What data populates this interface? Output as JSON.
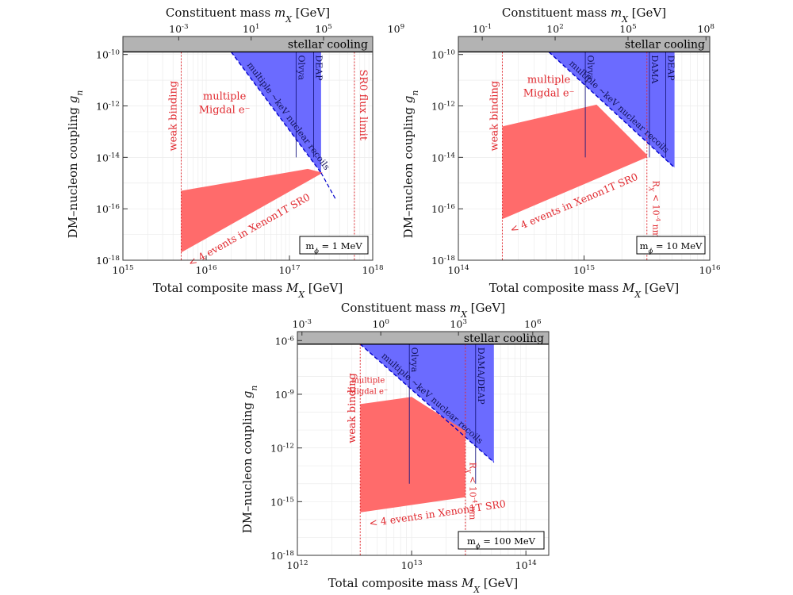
{
  "figure": {
    "colors": {
      "excluded_xenon": "#ff6b6b",
      "excluded_nuclear": "#6b6bff",
      "stellar_band": "#b3b3b3",
      "annotation_red": "#e0282e",
      "boundary_blue": "#0000cc",
      "grid": "#ececec"
    }
  },
  "chart_data": [
    {
      "id": "panel-1mev",
      "type": "area",
      "top_axis_label": "Constituent mass m_X [GeV]",
      "xlabel": "Total composite mass M_X [GeV]",
      "ylabel": "DM–nucleon coupling g_n",
      "x_scale": "log10",
      "y_scale": "log10",
      "xlim_log10": [
        15,
        18
      ],
      "ylim_log10": [
        -18,
        -9.3
      ],
      "stellar_cooling_below_log10": -9.9,
      "x_ticks": [
        {
          "v": 15,
          "label": "10^15"
        },
        {
          "v": 16,
          "label": "10^16"
        },
        {
          "v": 17,
          "label": "10^17"
        },
        {
          "v": 18,
          "label": "10^18"
        }
      ],
      "y_ticks": [
        {
          "v": -10,
          "label": "10^-10"
        },
        {
          "v": -12,
          "label": "10^-12"
        },
        {
          "v": -14,
          "label": "10^-14"
        },
        {
          "v": -16,
          "label": "10^-16"
        },
        {
          "v": -18,
          "label": "10^-18"
        }
      ],
      "top_ticks": [
        {
          "x": 15.67,
          "label": "10^-3"
        },
        {
          "x": 16.54,
          "label": "10^1"
        },
        {
          "x": 17.41,
          "label": "10^5"
        },
        {
          "x": 18.28,
          "label": "10^9"
        }
      ],
      "weak_binding_x": 15.7,
      "weak_binding_label": "weak binding",
      "right_limit_x": 17.78,
      "right_limit_label": "SR0 flux limit",
      "xenon_region": [
        [
          15.7,
          -17.7
        ],
        [
          15.7,
          -15.3
        ],
        [
          17.22,
          -14.45
        ],
        [
          17.4,
          -14.6
        ]
      ],
      "xenon_label": "< 4 events in Xenon1T SR0",
      "nuclear_region": [
        [
          16.3,
          -9.9
        ],
        [
          17.38,
          -9.9
        ],
        [
          17.38,
          -14.6
        ]
      ],
      "nuclear_boundary": [
        [
          16.3,
          -9.9
        ],
        [
          17.38,
          -14.6
        ]
      ],
      "nuclear_boundary_end": [
        [
          17.38,
          -14.6
        ],
        [
          17.55,
          -15.6
        ]
      ],
      "recoil_label": "multiple ~keV nuclear recoils",
      "experiment_lines": [
        {
          "x": 17.08,
          "label": "Olvya"
        },
        {
          "x": 17.29,
          "label": "DEAP"
        }
      ],
      "migdal_label": [
        "multiple",
        "Migdal e⁻"
      ],
      "migdal_at": [
        16.22,
        -11.75
      ],
      "migdal_size": 13,
      "mphi_label": "m_ϕ = 1 MeV",
      "extra_labels": []
    },
    {
      "id": "panel-10mev",
      "type": "area",
      "top_axis_label": "Constituent mass m_X [GeV]",
      "xlabel": "Total composite mass M_X [GeV]",
      "ylabel": "DM–nucleon coupling g_n",
      "x_scale": "log10",
      "y_scale": "log10",
      "xlim_log10": [
        14,
        16
      ],
      "ylim_log10": [
        -18,
        -9.3
      ],
      "stellar_cooling_below_log10": -9.9,
      "x_ticks": [
        {
          "v": 14,
          "label": "10^14"
        },
        {
          "v": 15,
          "label": "10^15"
        },
        {
          "v": 16,
          "label": "10^16"
        }
      ],
      "y_ticks": [
        {
          "v": -10,
          "label": "10^-10"
        },
        {
          "v": -12,
          "label": "10^-12"
        },
        {
          "v": -14,
          "label": "10^-14"
        },
        {
          "v": -16,
          "label": "10^-16"
        },
        {
          "v": -18,
          "label": "10^-18"
        }
      ],
      "top_ticks": [
        {
          "x": 14.19,
          "label": "10^-1"
        },
        {
          "x": 14.77,
          "label": "10^2"
        },
        {
          "x": 15.35,
          "label": "10^5"
        },
        {
          "x": 15.97,
          "label": "10^8"
        }
      ],
      "weak_binding_x": 14.35,
      "weak_binding_label": "weak binding",
      "right_limit_x": 15.5,
      "right_limit_label": "",
      "xenon_region": [
        [
          14.35,
          -16.4
        ],
        [
          14.35,
          -12.8
        ],
        [
          15.1,
          -11.95
        ],
        [
          15.5,
          -13.9
        ],
        [
          15.5,
          -14.0
        ]
      ],
      "xenon_label": "< 4 events in Xenon1T SR0",
      "nuclear_region": [
        [
          14.72,
          -9.9
        ],
        [
          15.72,
          -9.9
        ],
        [
          15.72,
          -14.4
        ]
      ],
      "nuclear_boundary": [
        [
          14.72,
          -9.9
        ],
        [
          15.72,
          -14.4
        ]
      ],
      "nuclear_boundary_end": [],
      "recoil_label": "multiple ~keV nuclear recoils",
      "experiment_lines": [
        {
          "x": 15.01,
          "label": "Olvya"
        },
        {
          "x": 15.52,
          "label": "DAMA"
        },
        {
          "x": 15.65,
          "label": "DEAP"
        }
      ],
      "migdal_label": [
        "multiple",
        "Migdal e⁻"
      ],
      "migdal_at": [
        14.72,
        -11.1
      ],
      "migdal_size": 13,
      "mphi_label": "m_ϕ = 10 MeV",
      "extra_labels": [
        {
          "text": "R_X < 10^-4 nm",
          "x": 15.55,
          "y": -14.9,
          "rotate": 90
        }
      ]
    },
    {
      "id": "panel-100mev",
      "type": "area",
      "top_axis_label": "Constituent mass m_X [GeV]",
      "xlabel": "Total composite mass M_X [GeV]",
      "ylabel": "DM–nucleon coupling g_n",
      "x_scale": "log10",
      "y_scale": "log10",
      "xlim_log10": [
        12,
        14.2
      ],
      "ylim_log10": [
        -18,
        -5.5
      ],
      "stellar_cooling_below_log10": -6.2,
      "x_ticks": [
        {
          "v": 12,
          "label": "10^12"
        },
        {
          "v": 13,
          "label": "10^13"
        },
        {
          "v": 14,
          "label": "10^14"
        }
      ],
      "y_ticks": [
        {
          "v": -6,
          "label": "10^-6"
        },
        {
          "v": -9,
          "label": "10^-9"
        },
        {
          "v": -12,
          "label": "10^-12"
        },
        {
          "v": -15,
          "label": "10^-15"
        },
        {
          "v": -18,
          "label": "10^-18"
        }
      ],
      "top_ticks": [
        {
          "x": 12.04,
          "label": "10^-3"
        },
        {
          "x": 12.73,
          "label": "10^0"
        },
        {
          "x": 13.41,
          "label": "10^3"
        },
        {
          "x": 14.06,
          "label": "10^6"
        }
      ],
      "weak_binding_x": 12.55,
      "weak_binding_label": "weak binding",
      "right_limit_x": 13.47,
      "right_limit_label": "",
      "xenon_region": [
        [
          12.55,
          -15.6
        ],
        [
          12.55,
          -9.55
        ],
        [
          13.0,
          -9.15
        ],
        [
          13.47,
          -11.05
        ],
        [
          13.47,
          -14.75
        ]
      ],
      "xenon_label": "< 4 events in Xenon1T SR0",
      "nuclear_region": [
        [
          12.55,
          -6.2
        ],
        [
          13.72,
          -6.2
        ],
        [
          13.72,
          -12.8
        ]
      ],
      "nuclear_boundary": [
        [
          12.55,
          -6.2
        ],
        [
          13.72,
          -12.8
        ]
      ],
      "nuclear_boundary_end": [],
      "recoil_label": "multiple ~keV nuclear recoils",
      "experiment_lines": [
        {
          "x": 12.98,
          "label": "Olvya"
        },
        {
          "x": 13.56,
          "label": "DAMA/DEAP"
        }
      ],
      "migdal_label": [
        "multiple",
        "Migdal e⁻"
      ],
      "migdal_at": [
        12.62,
        -8.35
      ],
      "migdal_size": 10,
      "mphi_label": "m_ϕ = 100 MeV",
      "extra_labels": [
        {
          "text": "R_X < 10^-4 nm",
          "x": 13.51,
          "y": -12.8,
          "rotate": 90
        }
      ]
    }
  ]
}
